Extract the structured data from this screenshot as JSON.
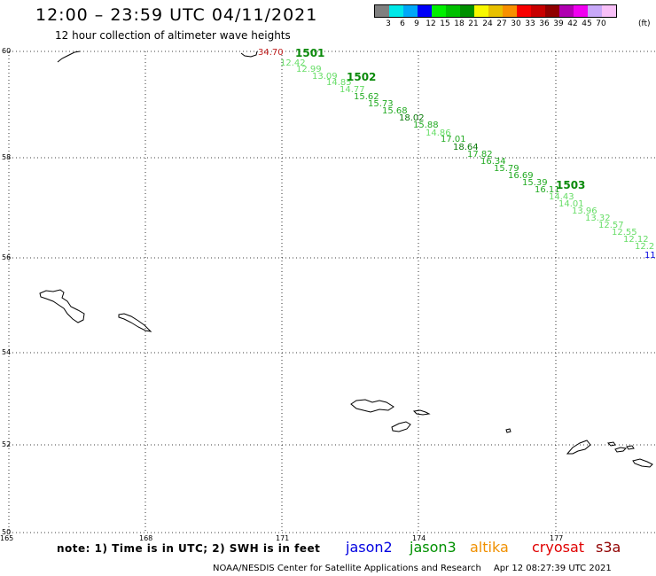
{
  "header": {
    "title": "12:00 – 23:59 UTC 04/11/2021",
    "subtitle": "12 hour collection of altimeter wave heights"
  },
  "legend": {
    "colors": [
      "#808080",
      "#00e8e8",
      "#00a8f8",
      "#0000f8",
      "#00f000",
      "#00c000",
      "#009000",
      "#f8f800",
      "#e8c000",
      "#f89000",
      "#f80000",
      "#c80000",
      "#900000",
      "#b000b0",
      "#f000f0",
      "#c8a8f8",
      "#f8c0f8"
    ],
    "labels": [
      "3",
      "6",
      "9",
      "12",
      "15",
      "18",
      "21",
      "24",
      "27",
      "30",
      "33",
      "36",
      "39",
      "42",
      "45",
      "70"
    ],
    "unit": "(ft)"
  },
  "axes": {
    "lat_labels": [
      "60",
      "58",
      "56",
      "54",
      "52",
      "50"
    ],
    "lon_labels": [
      "165",
      "168",
      "171",
      "174",
      "177"
    ]
  },
  "observations": [
    {
      "text": "34.70",
      "color": "#c02020"
    },
    {
      "text": "12.42",
      "color": "#66dd66"
    },
    {
      "text": "12.99",
      "color": "#66dd66"
    },
    {
      "text": "13.09",
      "color": "#66dd66"
    },
    {
      "text": "14.85",
      "color": "#66dd66"
    },
    {
      "text": "14.77",
      "color": "#66dd66"
    },
    {
      "text": "15.62",
      "color": "#22aa22"
    },
    {
      "text": "15.73",
      "color": "#22aa22"
    },
    {
      "text": "15.68",
      "color": "#22aa22"
    },
    {
      "text": "18.02",
      "color": "#0a7a0a"
    },
    {
      "text": "15.88",
      "color": "#22aa22"
    },
    {
      "text": "14.86",
      "color": "#66dd66"
    },
    {
      "text": "17.01",
      "color": "#22aa22"
    },
    {
      "text": "18.64",
      "color": "#0a7a0a"
    },
    {
      "text": "17.82",
      "color": "#22aa22"
    },
    {
      "text": "16.34",
      "color": "#22aa22"
    },
    {
      "text": "15.79",
      "color": "#22aa22"
    },
    {
      "text": "16.69",
      "color": "#22aa22"
    },
    {
      "text": "15.39",
      "color": "#22aa22"
    },
    {
      "text": "16.11",
      "color": "#22aa22"
    },
    {
      "text": "14.43",
      "color": "#66dd66"
    },
    {
      "text": "14.01",
      "color": "#66dd66"
    },
    {
      "text": "13.96",
      "color": "#66dd66"
    },
    {
      "text": "13.32",
      "color": "#66dd66"
    },
    {
      "text": "12.57",
      "color": "#66dd66"
    },
    {
      "text": "12.55",
      "color": "#66dd66"
    },
    {
      "text": "12.12",
      "color": "#66dd66"
    },
    {
      "text": "12.2",
      "color": "#66dd66"
    },
    {
      "text": "11",
      "color": "#0000e0"
    }
  ],
  "tracks": [
    "1501",
    "1502",
    "1503"
  ],
  "footer": {
    "note": "note:  1) Time is in UTC;  2) SWH is in feet",
    "satellites": [
      {
        "name": "jason2",
        "color": "#0000e0"
      },
      {
        "name": "jason3",
        "color": "#009000"
      },
      {
        "name": "altika",
        "color": "#f09000"
      },
      {
        "name": "cryosat",
        "color": "#e00000"
      },
      {
        "name": "s3a",
        "color": "#900000"
      }
    ],
    "credit": "NOAA/NESDIS Center for Satellite Applications and Research",
    "timestamp": "Apr 12 08:27:39 UTC 2021"
  }
}
